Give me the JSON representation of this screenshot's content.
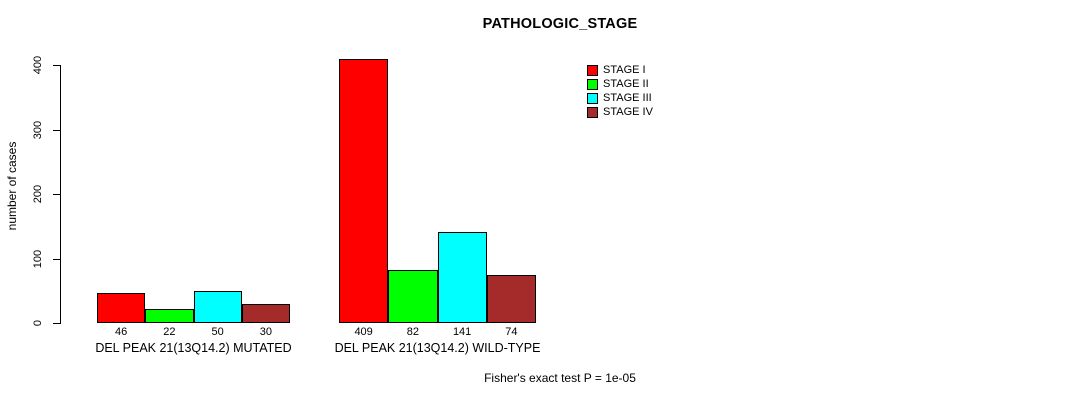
{
  "chart_data": {
    "type": "bar",
    "title": "PATHOLOGIC_STAGE",
    "ylabel": "number of cases",
    "ylim": [
      0,
      400
    ],
    "yticks": [
      0,
      100,
      200,
      300,
      400
    ],
    "grid": false,
    "legend_position": "top-right",
    "categories": [
      "DEL PEAK 21(13Q14.2) MUTATED",
      "DEL PEAK 21(13Q14.2) WILD-TYPE"
    ],
    "series": [
      {
        "name": "STAGE I",
        "color": "#ff0000",
        "values": [
          46,
          409
        ]
      },
      {
        "name": "STAGE II",
        "color": "#00ff00",
        "values": [
          22,
          82
        ]
      },
      {
        "name": "STAGE III",
        "color": "#00ffff",
        "values": [
          50,
          141
        ]
      },
      {
        "name": "STAGE IV",
        "color": "#a52a2a",
        "values": [
          30,
          74
        ]
      }
    ],
    "annotation": "Fisher's exact test P = 1e-05"
  }
}
